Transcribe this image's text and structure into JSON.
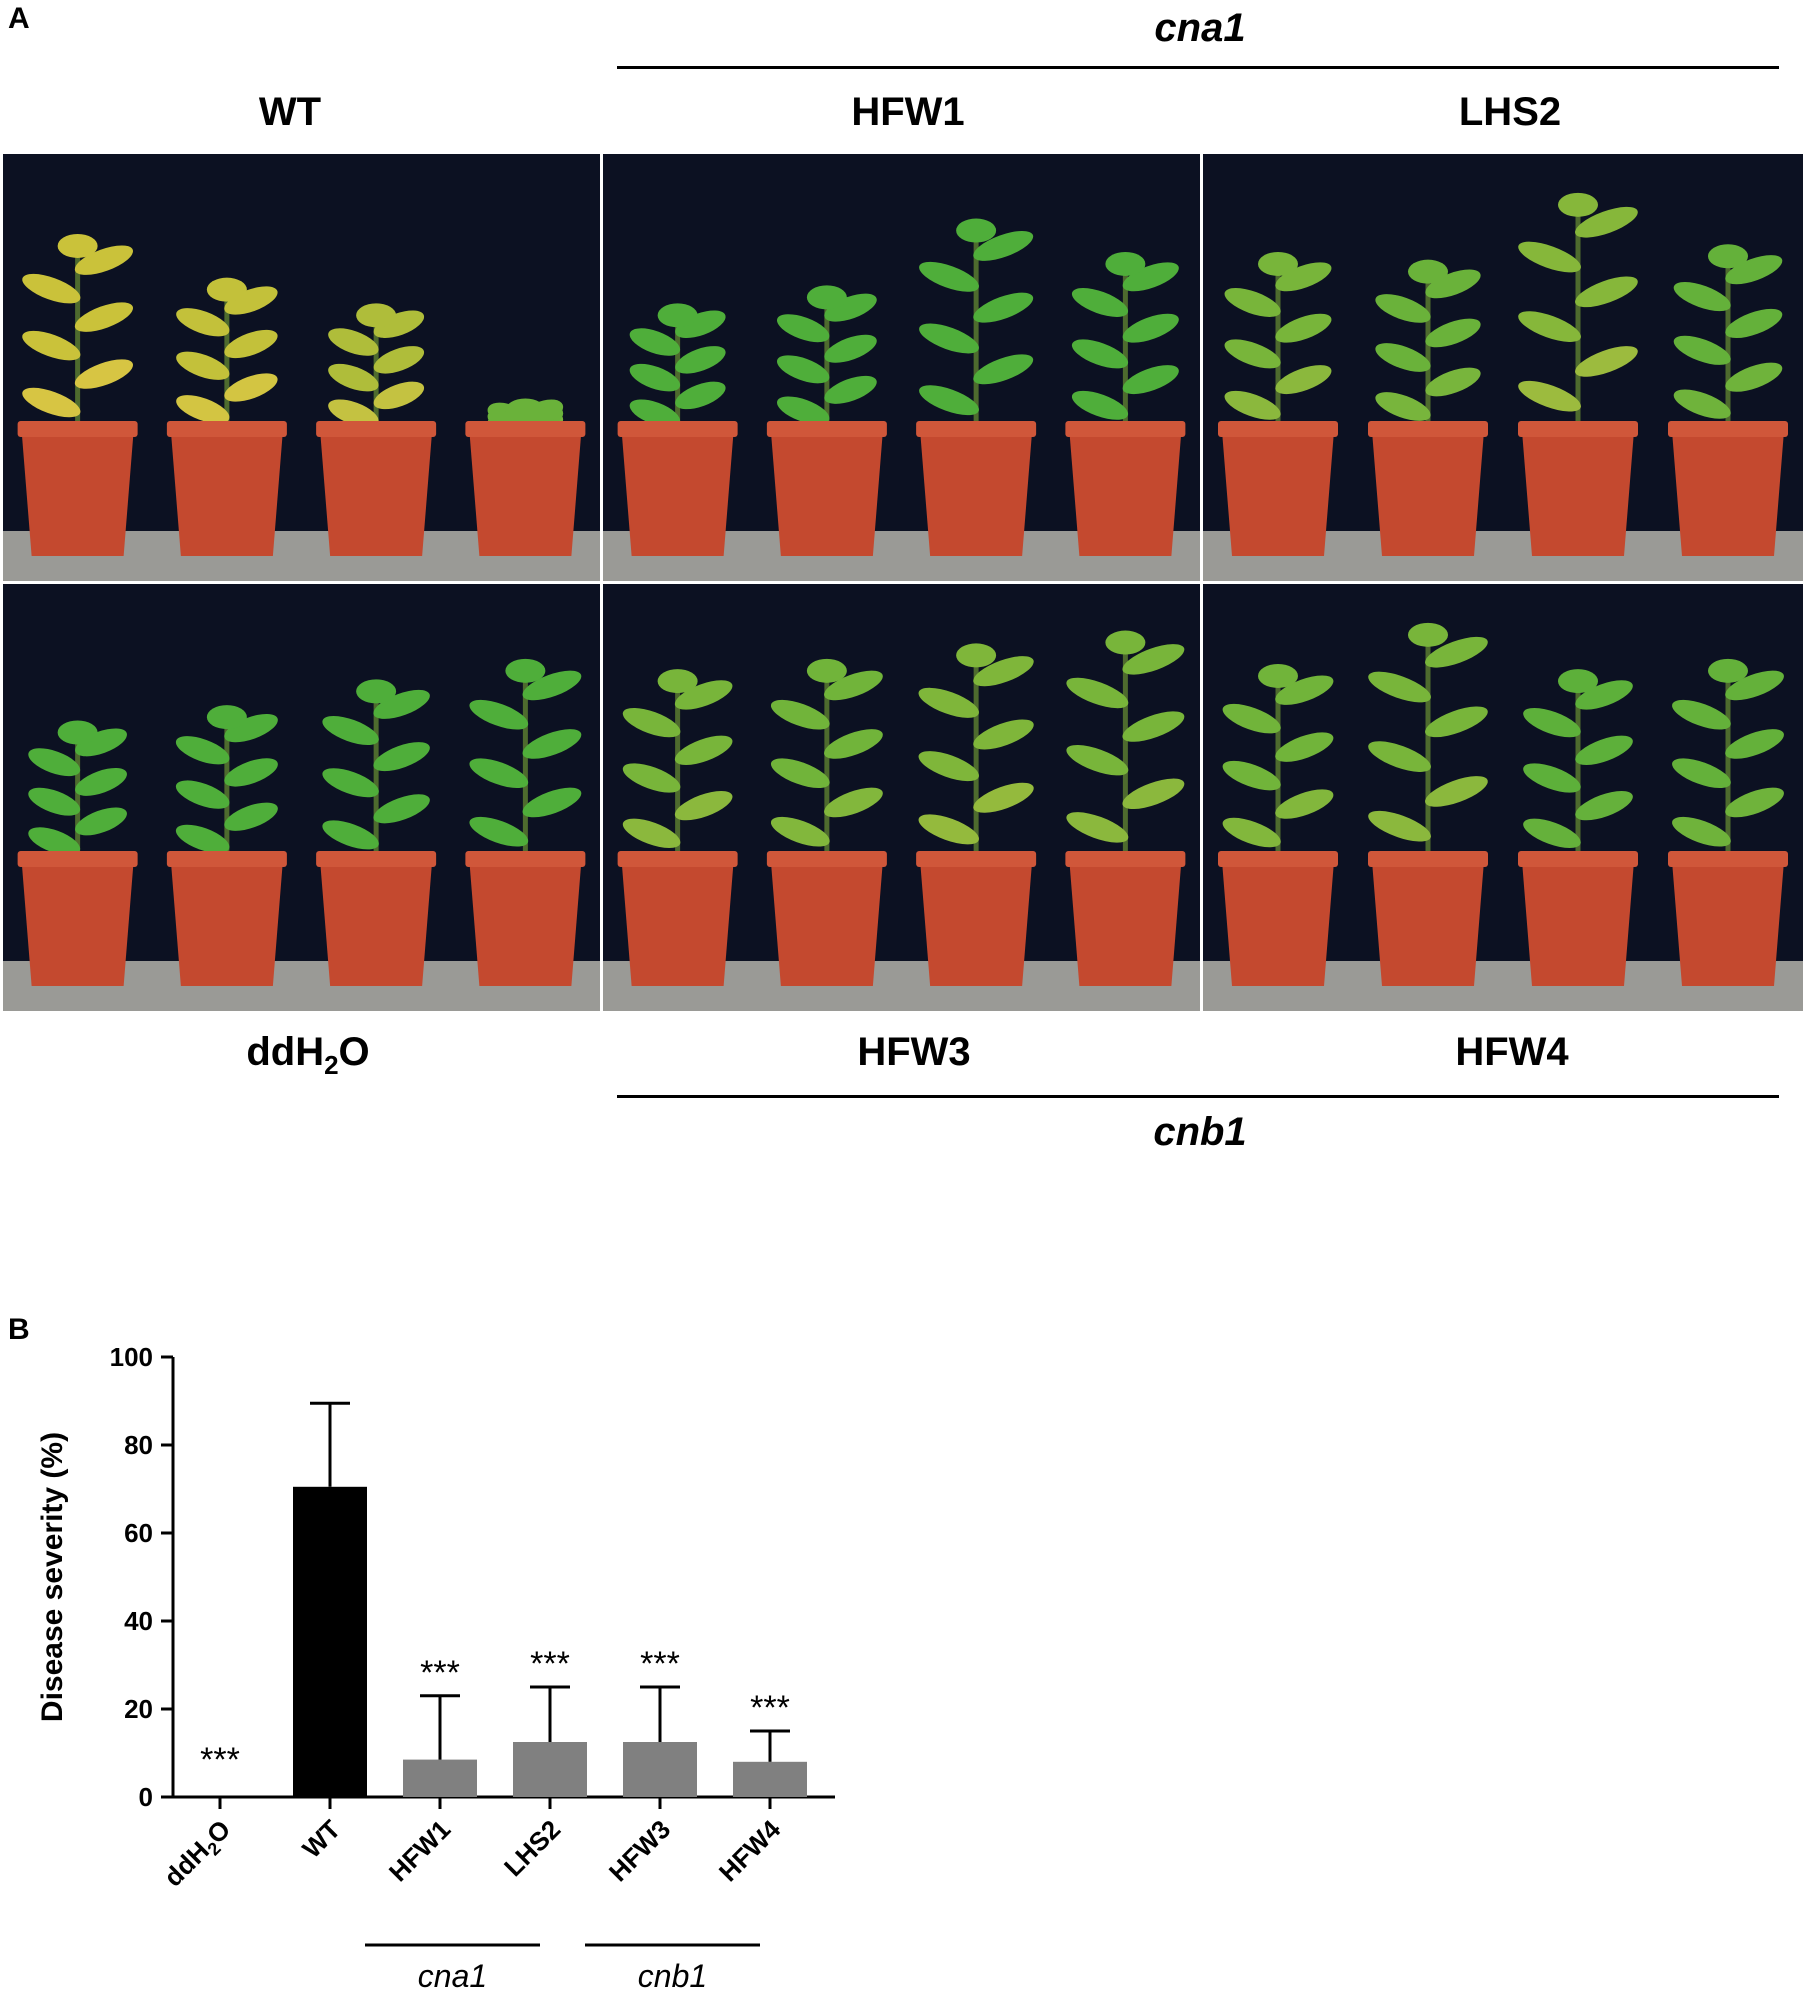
{
  "panel_a": {
    "letter": "A",
    "groups": {
      "top": "cna1",
      "bottom": "cnb1"
    },
    "top_labels": [
      "WT",
      "HFW1",
      "LHS2"
    ],
    "bottom_labels": {
      "ddh2o_prefix": "ddH",
      "ddh2o_sub": "2",
      "ddh2o_suffix": "O",
      "hfw3": "HFW3",
      "hfw4": "HFW4"
    }
  },
  "panel_b": {
    "letter": "B"
  },
  "chart_data": {
    "type": "bar",
    "categories": [
      "ddH2O",
      "WT",
      "HFW1",
      "LHS2",
      "HFW3",
      "HFW4"
    ],
    "values": [
      0,
      70.5,
      8.5,
      12.5,
      12.5,
      8.0
    ],
    "error_upper": [
      0,
      89.5,
      23.0,
      25.0,
      25.0,
      15.0
    ],
    "significance": [
      "***",
      "",
      "***",
      "***",
      "***",
      "***"
    ],
    "bar_colors": [
      "#000000",
      "#000000",
      "#808080",
      "#808080",
      "#808080",
      "#808080"
    ],
    "ylabel": "Disease severity (%)",
    "ylim": [
      0,
      100
    ],
    "yticks": [
      0,
      20,
      40,
      60,
      80,
      100
    ],
    "group_labels": [
      {
        "label": "cna1",
        "categories": [
          "HFW1",
          "LHS2"
        ]
      },
      {
        "label": "cnb1",
        "categories": [
          "HFW3",
          "HFW4"
        ]
      }
    ],
    "grid": false
  }
}
